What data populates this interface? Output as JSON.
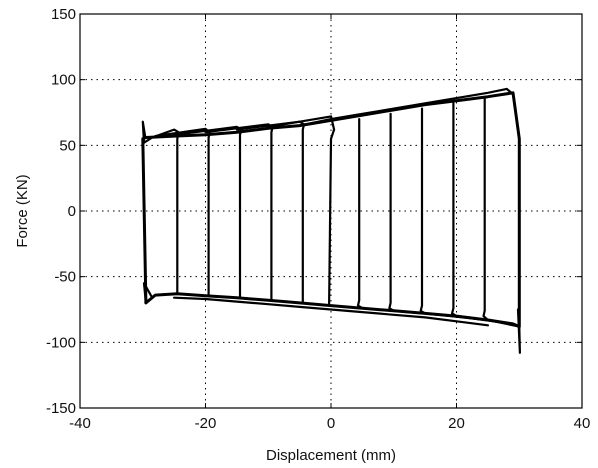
{
  "chart_data": {
    "type": "line",
    "title": "",
    "xlabel": "Displacement (mm)",
    "ylabel": "Force (KN)",
    "xlim": [
      -40,
      40
    ],
    "ylim": [
      -150,
      150
    ],
    "xticks": [
      -40,
      -20,
      0,
      20,
      40
    ],
    "yticks": [
      -150,
      -100,
      -50,
      0,
      50,
      100,
      150
    ],
    "xtick_labels": [
      "-40",
      "-20",
      "0",
      "20",
      "40"
    ],
    "ytick_labels": [
      "-150",
      "-100",
      "-50",
      "0",
      "50",
      "100",
      "150"
    ],
    "grid": true,
    "grid_style": "dotted",
    "line_color": "#000000",
    "series": [
      {
        "x": [
          -29.5,
          -28,
          -24.5,
          -20,
          -15,
          -10,
          -5,
          0,
          5,
          10,
          15,
          20,
          25,
          29,
          30,
          30,
          29,
          25,
          20,
          15,
          10,
          5,
          0,
          -5,
          -10,
          -15,
          -20,
          -25,
          -29.5,
          -30,
          -29.5
        ],
        "y": [
          -70,
          -64,
          -63,
          -64.5,
          -66,
          -68,
          -70,
          -72,
          -74,
          -76,
          -78,
          -80,
          -83,
          -86,
          -88,
          55,
          90,
          87,
          84,
          81,
          77,
          73,
          69,
          65,
          63,
          60,
          58,
          57,
          56,
          55,
          -70
        ]
      },
      {
        "x": [
          -24.5,
          -24.5,
          -24.3,
          -25,
          -28.5,
          -29.8
        ],
        "y": [
          -63,
          55,
          60,
          62,
          56,
          52
        ]
      },
      {
        "x": [
          -19.5,
          -19.5,
          -19.3,
          -20,
          -28
        ],
        "y": [
          -64.5,
          56,
          60,
          62.5,
          57
        ]
      },
      {
        "x": [
          -14.5,
          -14.5,
          -14.3,
          -15,
          -25
        ],
        "y": [
          -66,
          58,
          62,
          64,
          58
        ]
      },
      {
        "x": [
          -9.5,
          -9.5,
          -9.3,
          -10,
          -20
        ],
        "y": [
          -68,
          60,
          64,
          66,
          60
        ]
      },
      {
        "x": [
          -4.5,
          -4.5,
          -4.3,
          -5,
          -15
        ],
        "y": [
          -70,
          62,
          66,
          68,
          62
        ]
      },
      {
        "x": [
          -0.3,
          0,
          0.5,
          0,
          -10
        ],
        "y": [
          -72,
          55,
          62,
          72,
          64
        ]
      },
      {
        "x": [
          4.5,
          4.5,
          4.3,
          5,
          15
        ],
        "y": [
          70,
          -68,
          -72,
          -74,
          -78
        ]
      },
      {
        "x": [
          9.5,
          9.5,
          9.3,
          10,
          20
        ],
        "y": [
          74,
          -70,
          -74,
          -76,
          -80
        ]
      },
      {
        "x": [
          14.5,
          14.5,
          14.3,
          15,
          25
        ],
        "y": [
          78,
          -72,
          -76,
          -78,
          -83
        ]
      },
      {
        "x": [
          19.5,
          19.5,
          19.3,
          20,
          29
        ],
        "y": [
          82,
          -74,
          -78,
          -80,
          -86
        ]
      },
      {
        "x": [
          24.5,
          24.5,
          24.3,
          25,
          30
        ],
        "y": [
          86,
          -76,
          -80,
          -83,
          -88
        ]
      },
      {
        "x": [
          30,
          30.1,
          29.8
        ],
        "y": [
          -88,
          -108,
          -75
        ]
      },
      {
        "x": [
          -29.8,
          -30,
          -29.6
        ],
        "y": [
          52,
          68,
          56
        ]
      },
      {
        "x": [
          -29.5,
          -29.8,
          -28.5
        ],
        "y": [
          -70,
          -55,
          -66
        ]
      },
      {
        "x": [
          -5,
          0,
          5,
          10,
          15,
          20,
          25,
          28,
          29
        ],
        "y": [
          65,
          70,
          74,
          78,
          82,
          86,
          90,
          93,
          89
        ]
      },
      {
        "x": [
          -25,
          -20,
          -15,
          -10,
          -5,
          0,
          5,
          10,
          15,
          20,
          25
        ],
        "y": [
          -66,
          -67,
          -69,
          -71,
          -73,
          -75,
          -77,
          -79,
          -81,
          -84,
          -87
        ]
      }
    ]
  }
}
